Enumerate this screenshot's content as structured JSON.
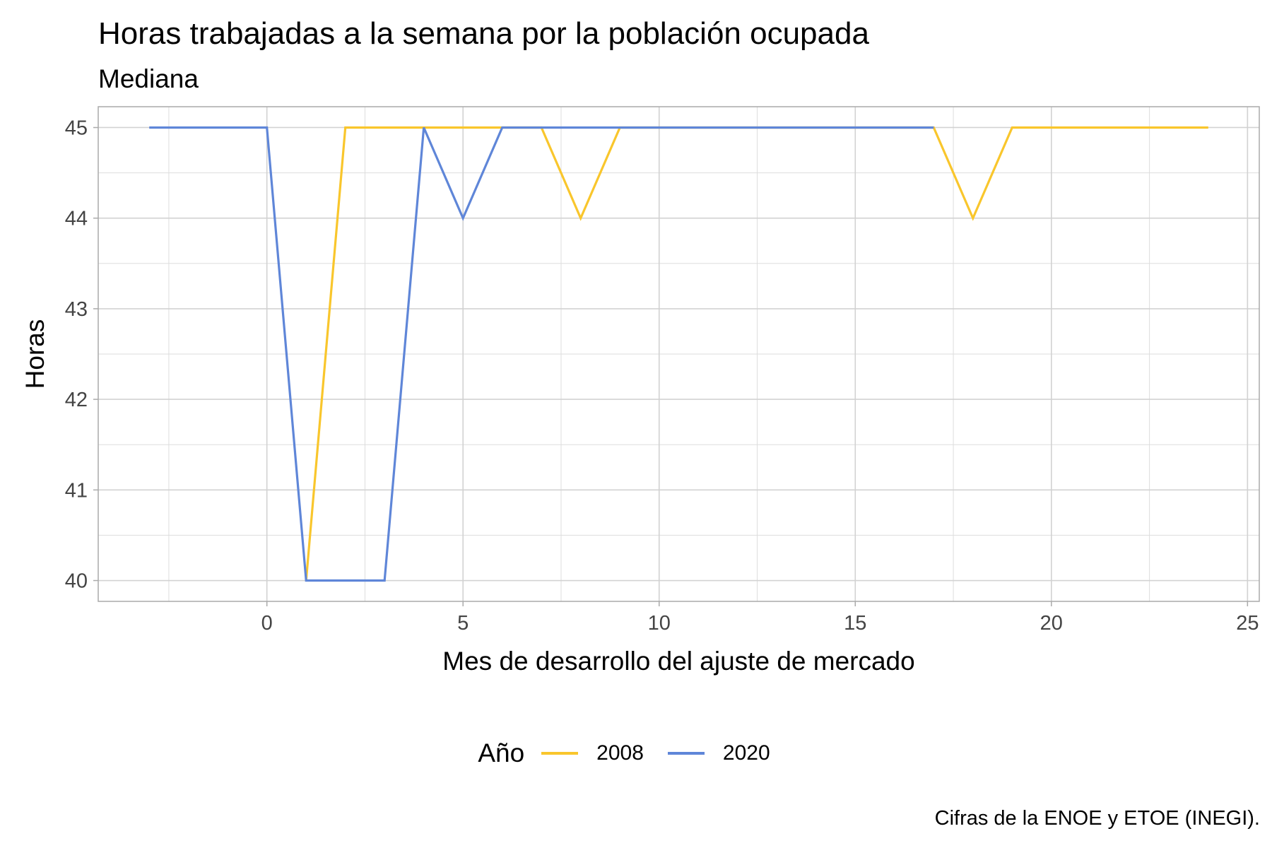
{
  "title": "Horas trabajadas a la semana por la población ocupada",
  "subtitle": "Mediana",
  "caption": "Cifras de la ENOE y ETOE (INEGI).",
  "legend": {
    "title": "Año"
  },
  "colors": {
    "2008": "#F9C62C",
    "2020": "#5F86D8",
    "grid": "#DDDDDD",
    "frame": "#AAAAAA",
    "tick_text": "#444444"
  },
  "chart_data": {
    "type": "line",
    "title": "Horas trabajadas a la semana por la población ocupada",
    "subtitle": "Mediana",
    "xlabel": "Mes de desarrollo del ajuste de mercado",
    "ylabel": "Horas",
    "xlim": [
      -4.3,
      25.3
    ],
    "ylim": [
      39.77,
      45.23
    ],
    "x_ticks": [
      0,
      5,
      10,
      15,
      20,
      25
    ],
    "y_ticks": [
      40,
      41,
      42,
      43,
      44,
      45
    ],
    "grid": true,
    "legend_position": "bottom",
    "series": [
      {
        "name": "2008",
        "x": [
          1,
          2,
          3,
          4,
          5,
          6,
          7,
          8,
          9,
          10,
          11,
          12,
          13,
          14,
          15,
          16,
          17,
          18,
          19,
          20,
          21,
          22,
          23,
          24
        ],
        "y": [
          40,
          45,
          45,
          45,
          45,
          45,
          45,
          44,
          45,
          45,
          45,
          45,
          45,
          45,
          45,
          45,
          45,
          44,
          45,
          45,
          45,
          45,
          45,
          45
        ]
      },
      {
        "name": "2020",
        "x": [
          -3,
          -2,
          -1,
          0,
          1,
          2,
          3,
          4,
          5,
          6,
          7,
          8,
          9,
          10,
          11,
          12,
          13,
          14,
          15,
          16,
          17
        ],
        "y": [
          45,
          45,
          45,
          45,
          40,
          40,
          40,
          45,
          44,
          45,
          45,
          45,
          45,
          45,
          45,
          45,
          45,
          45,
          45,
          45,
          45
        ]
      }
    ]
  }
}
